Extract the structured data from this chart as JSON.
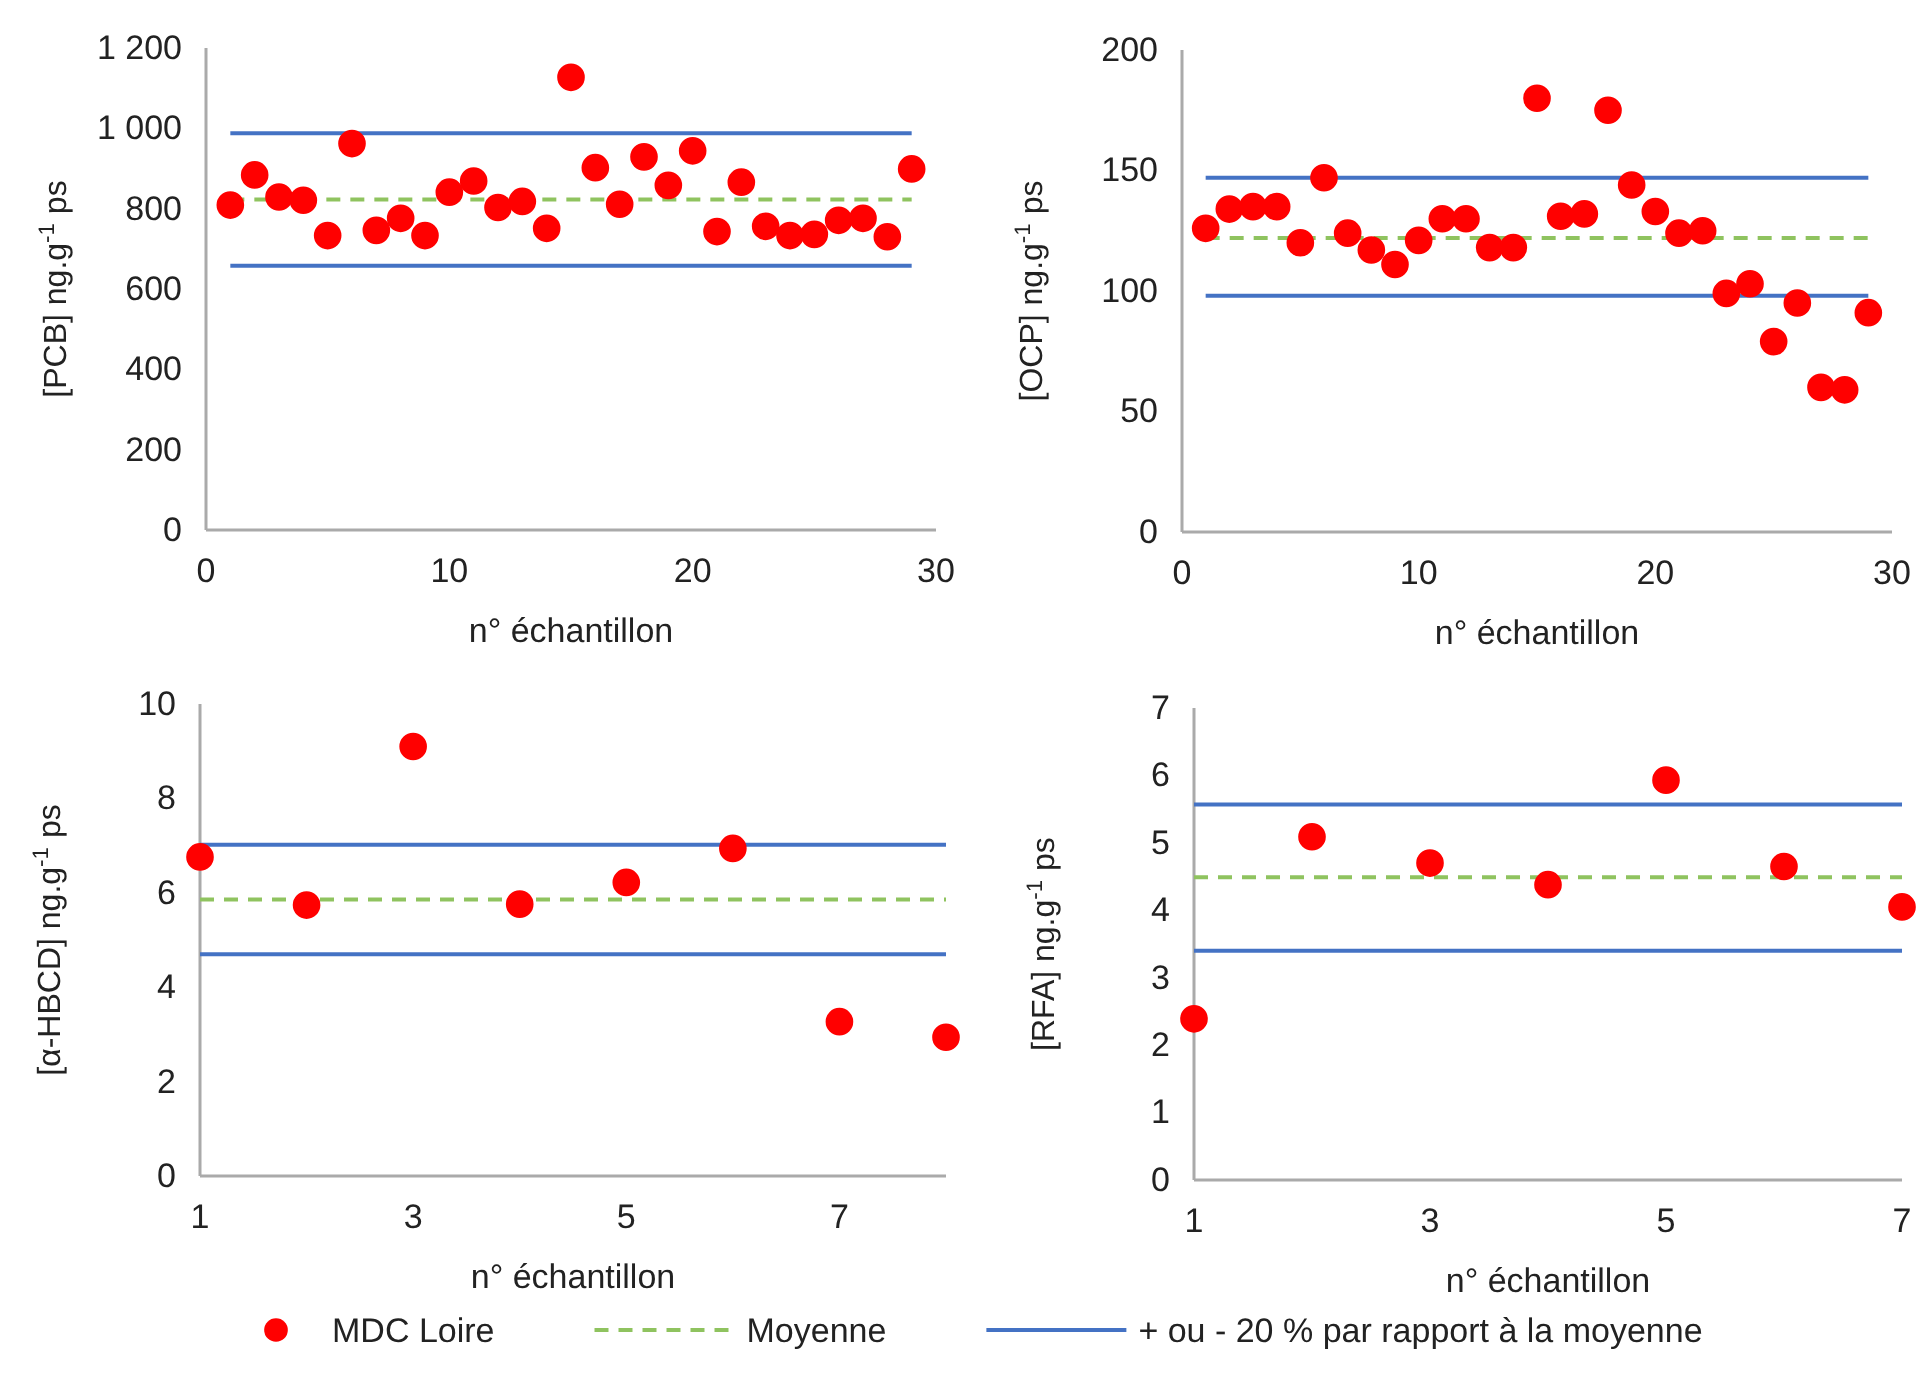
{
  "chart_data": [
    {
      "type": "scatter",
      "xlabel": "n° échantillon",
      "ylabel": "[PCB] ng.g$^{-1}$ ps",
      "xlim": [
        0,
        30
      ],
      "xticks": [
        0,
        10,
        20,
        30
      ],
      "ylim": [
        0,
        1200
      ],
      "yticks": [
        0,
        200,
        400,
        600,
        800,
        {
          "value": 1000,
          "label": "1 000"
        },
        {
          "value": 1200,
          "label": "1 200"
        }
      ],
      "grid": false,
      "legend": "bottom",
      "x": [
        1,
        2,
        3,
        4,
        5,
        6,
        7,
        8,
        9,
        10,
        11,
        12,
        13,
        14,
        15,
        16,
        17,
        18,
        19,
        20,
        21,
        22,
        23,
        24,
        25,
        26,
        27,
        28,
        29
      ],
      "series": [
        {
          "name": "MDC Loire",
          "color": "#ff0000",
          "marker": "circle",
          "values": [
            809,
            884,
            829,
            821,
            733,
            962,
            746,
            776,
            733,
            841,
            869,
            803,
            818,
            751,
            1127,
            902,
            811,
            929,
            858,
            944,
            743,
            866,
            756,
            733,
            736,
            771,
            776,
            730,
            899
          ]
        },
        {
          "type": "line",
          "name": "Moyenne",
          "color": "#8fc35f",
          "line_style": "dashed",
          "marker": "none",
          "x": [
            1,
            29
          ],
          "values": [
            823,
            823
          ]
        },
        {
          "type": "line",
          "name": "+ ou - 20 % par rapport à la moyenne",
          "color": "#4472c4",
          "line_style": "solid",
          "marker": "none",
          "x": [
            1,
            29
          ],
          "values": [
            988,
            988
          ]
        },
        {
          "type": "line",
          "color": "#4472c4",
          "line_style": "solid",
          "marker": "none",
          "x": [
            1,
            29
          ],
          "values": [
            658,
            658
          ]
        }
      ]
    },
    {
      "type": "scatter",
      "xlabel": "n° échantillon",
      "ylabel": "[OCP] ng.g$^{-1}$ ps",
      "xlim": [
        0,
        30
      ],
      "xticks": [
        0,
        10,
        20,
        30
      ],
      "ylim": [
        0,
        200
      ],
      "yticks": [
        0,
        50,
        100,
        150,
        200
      ],
      "grid": false,
      "x": [
        1,
        2,
        3,
        4,
        5,
        6,
        7,
        8,
        9,
        10,
        11,
        12,
        13,
        14,
        15,
        16,
        17,
        18,
        19,
        20,
        21,
        22,
        23,
        24,
        25,
        26,
        27,
        28,
        29
      ],
      "series": [
        {
          "color": "#ff0000",
          "marker": "circle",
          "values": [
            126,
            134,
            135,
            135,
            120,
            147,
            124,
            117,
            111,
            121,
            130,
            130,
            118,
            118,
            180,
            131,
            132,
            175,
            144,
            133,
            124,
            125,
            99,
            103,
            79,
            95,
            60,
            59,
            91
          ]
        },
        {
          "type": "line",
          "color": "#8fc35f",
          "line_style": "dashed",
          "marker": "none",
          "x": [
            1,
            29
          ],
          "values": [
            122,
            122
          ]
        },
        {
          "type": "line",
          "color": "#4472c4",
          "line_style": "solid",
          "marker": "none",
          "x": [
            1,
            29
          ],
          "values": [
            147,
            147
          ]
        },
        {
          "type": "line",
          "color": "#4472c4",
          "line_style": "solid",
          "marker": "none",
          "x": [
            1,
            29
          ],
          "values": [
            98,
            98
          ]
        }
      ]
    },
    {
      "type": "scatter",
      "xlabel": "n° échantillon",
      "ylabel": "[α-HBCD] ng.g$^{-1}$ ps",
      "xlim": [
        1,
        8
      ],
      "xticks": [
        1,
        3,
        5,
        7
      ],
      "ylim": [
        0,
        10
      ],
      "yticks": [
        0,
        2,
        4,
        6,
        8,
        10
      ],
      "grid": false,
      "x": [
        1,
        2,
        3,
        4,
        5,
        6,
        7,
        8
      ],
      "series": [
        {
          "color": "#ff0000",
          "marker": "circle",
          "values": [
            6.76,
            5.74,
            9.1,
            5.76,
            6.22,
            6.94,
            3.27,
            2.94
          ]
        },
        {
          "type": "line",
          "color": "#8fc35f",
          "line_style": "dashed",
          "marker": "none",
          "x": [
            1,
            8
          ],
          "values": [
            5.86,
            5.86
          ]
        },
        {
          "type": "line",
          "color": "#4472c4",
          "line_style": "solid",
          "marker": "none",
          "x": [
            1,
            8
          ],
          "values": [
            7.02,
            7.02
          ]
        },
        {
          "type": "line",
          "color": "#4472c4",
          "line_style": "solid",
          "marker": "none",
          "x": [
            1,
            8
          ],
          "values": [
            4.7,
            4.7
          ]
        }
      ]
    },
    {
      "type": "scatter",
      "xlabel": "n° échantillon",
      "ylabel": "[RFA] ng.g$^{-1}$ ps",
      "xlim": [
        1,
        7
      ],
      "xticks": [
        1,
        3,
        5,
        7
      ],
      "ylim": [
        0,
        7
      ],
      "yticks": [
        0,
        1,
        2,
        3,
        4,
        5,
        6,
        7
      ],
      "grid": false,
      "x": [
        1,
        2,
        3,
        4,
        5,
        6,
        7
      ],
      "series": [
        {
          "color": "#ff0000",
          "marker": "circle",
          "values": [
            2.39,
            5.09,
            4.7,
            4.38,
            5.93,
            4.65,
            4.05
          ]
        },
        {
          "type": "line",
          "color": "#8fc35f",
          "line_style": "dashed",
          "marker": "none",
          "x": [
            1,
            7
          ],
          "values": [
            4.49,
            4.49
          ]
        },
        {
          "type": "line",
          "color": "#4472c4",
          "line_style": "solid",
          "marker": "none",
          "x": [
            1,
            7
          ],
          "values": [
            5.57,
            5.57
          ]
        },
        {
          "type": "line",
          "color": "#4472c4",
          "line_style": "solid",
          "marker": "none",
          "x": [
            1,
            7
          ],
          "values": [
            3.4,
            3.4
          ]
        }
      ]
    }
  ]
}
